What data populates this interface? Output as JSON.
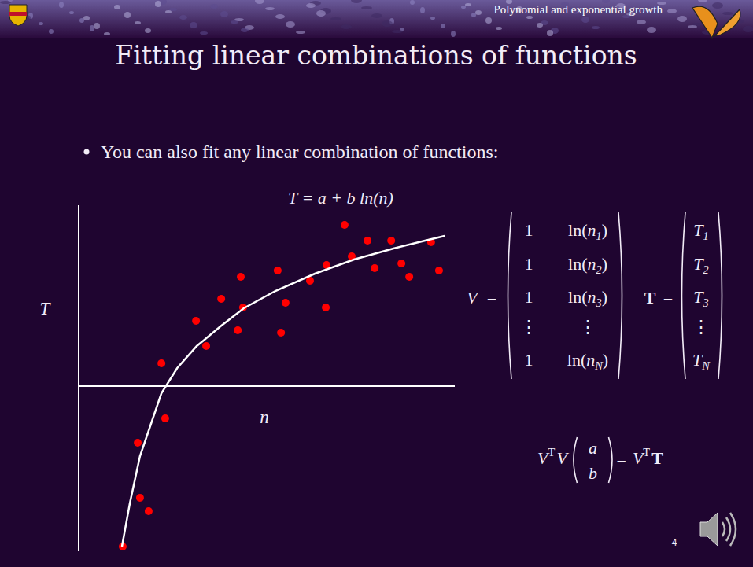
{
  "slide": {
    "header": "Polynomial and exponential growth",
    "title": "Fitting linear combinations of functions",
    "bullet": "You can also fit any linear combination of functions:",
    "page": "4",
    "matrix_v": {
      "name": "V",
      "eq": "=",
      "rows": [
        [
          {
            "text": "1"
          },
          {
            "text": "ln(n",
            "sub": "1",
            "tail": ")"
          }
        ],
        [
          {
            "text": "1"
          },
          {
            "text": "ln(n",
            "sub": "2",
            "tail": ")"
          }
        ],
        [
          {
            "text": "1"
          },
          {
            "text": "ln(n",
            "sub": "3",
            "tail": ")"
          }
        ],
        [
          {
            "text": "⋮"
          },
          {
            "text": "⋮"
          }
        ],
        [
          {
            "text": "1"
          },
          {
            "text": "ln(n",
            "sub": "N",
            "tail": ")"
          }
        ]
      ]
    },
    "vector_t": {
      "name": "T",
      "eq": "=",
      "rows": [
        {
          "text": "T",
          "sub": "1"
        },
        {
          "text": "T",
          "sub": "2"
        },
        {
          "text": "T",
          "sub": "3"
        },
        {
          "text": "⋮"
        },
        {
          "text": "T",
          "sub": "N"
        }
      ]
    },
    "normal_equation": {
      "lhs": [
        {
          "text": "V",
          "sup": "T"
        },
        {
          "text": "V"
        }
      ],
      "vector": [
        "a",
        "b"
      ],
      "eq": "=",
      "rhs": [
        {
          "text": "V",
          "sup": "T"
        },
        {
          "text": "T"
        }
      ]
    }
  },
  "chart_data": {
    "type": "scatter",
    "title": "T = a + b ln(n)",
    "x_label": "n",
    "y_label": "T",
    "xlim": [
      0,
      10
    ],
    "ylim": [
      -4.2,
      4.6
    ],
    "tick_labels": false,
    "grid": false,
    "series": [
      {
        "type": "scatter",
        "color": "#ff0000",
        "marker": "circle",
        "x": [
          7.07,
          7.68,
          8.31,
          9.37,
          4.31,
          5.29,
          6.59,
          7.26,
          7.87,
          8.58,
          8.79,
          9.58,
          6.15,
          3.79,
          5.5,
          3.12,
          4.37,
          4.23,
          6.57,
          5.38,
          3.39,
          2.2,
          2.3,
          1.57,
          1.63,
          1.86,
          1.17
        ],
        "values": [
          4.1,
          3.7,
          3.7,
          3.66,
          2.78,
          2.94,
          3.08,
          3.3,
          3.0,
          3.12,
          2.78,
          2.94,
          2.68,
          2.22,
          2.12,
          1.66,
          2.0,
          1.42,
          2.0,
          1.36,
          1.02,
          0.58,
          -0.82,
          -1.44,
          -2.84,
          -3.18,
          -4.08
        ]
      },
      {
        "type": "line",
        "color": "#ffffff",
        "line_style": "solid",
        "x": [
          1.15,
          1.36,
          1.63,
          1.88,
          2.2,
          2.62,
          3.14,
          3.77,
          4.39,
          5.23,
          6.28,
          7.32,
          8.37,
          9.21,
          9.73
        ],
        "values": [
          -4.08,
          -2.98,
          -1.78,
          -1.08,
          -0.18,
          0.46,
          1.02,
          1.52,
          1.98,
          2.42,
          2.86,
          3.22,
          3.5,
          3.7,
          3.82
        ]
      }
    ]
  }
}
